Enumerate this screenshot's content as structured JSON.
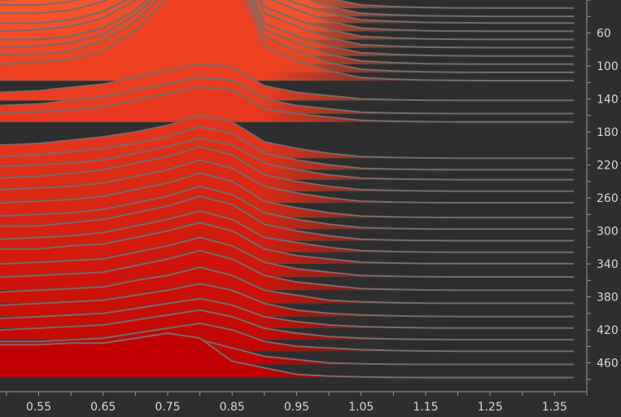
{
  "chart_data": {
    "type": "area",
    "style": "ridgeline",
    "background": "#2e2e2e",
    "line_color": "#6e6e6e",
    "color_top": "#ff5a2e",
    "color_bottom": "#c00000",
    "grid": false,
    "legend": "none",
    "x": [
      0.49,
      0.55,
      0.6,
      0.65,
      0.7,
      0.75,
      0.8,
      0.85,
      0.9,
      0.95,
      1.0,
      1.05,
      1.1,
      1.15,
      1.2,
      1.25,
      1.3,
      1.35,
      1.38
    ],
    "xlim": [
      0.49,
      1.4
    ],
    "x_ticks": [
      0.55,
      0.65,
      0.75,
      0.85,
      0.95,
      1.05,
      1.15,
      1.25,
      1.35
    ],
    "x_tick_labels": [
      "0.55",
      "0.65",
      "0.75",
      "0.85",
      "0.95",
      "1.05",
      "1.15",
      "1.25",
      "1.35"
    ],
    "y_ticks": [
      60,
      100,
      140,
      180,
      220,
      260,
      300,
      340,
      380,
      420,
      460
    ],
    "y_tick_labels": [
      "60",
      "100",
      "140",
      "180",
      "220",
      "260",
      "300",
      "340",
      "380",
      "420",
      "460"
    ],
    "ylim": [
      20,
      495
    ],
    "ridge_scale": 2.0,
    "series": [
      {
        "baseline": 30,
        "values": [
          10,
          11,
          13,
          18,
          26,
          38,
          62,
          58,
          20,
          12,
          6,
          2,
          1,
          0.4,
          0.2,
          0.1,
          0.1,
          0.1,
          0.1
        ]
      },
      {
        "baseline": 40,
        "values": [
          10,
          11,
          13,
          18,
          27,
          40,
          66,
          60,
          21,
          13,
          6,
          2,
          1,
          0.4,
          0.2,
          0.1,
          0.1,
          0.1,
          0.1
        ]
      },
      {
        "baseline": 48,
        "values": [
          11,
          11,
          13,
          18,
          27,
          40,
          68,
          60,
          20,
          12,
          6,
          2,
          1,
          0.4,
          0.2,
          0.1,
          0.1,
          0.1,
          0.1
        ]
      },
      {
        "baseline": 58,
        "values": [
          11,
          11,
          13,
          18,
          28,
          42,
          70,
          62,
          21,
          13,
          6,
          2,
          1,
          0.4,
          0.2,
          0.1,
          0.1,
          0.1,
          0.1
        ]
      },
      {
        "baseline": 68,
        "values": [
          10,
          10,
          12,
          17,
          27,
          42,
          70,
          62,
          20,
          12,
          6,
          2,
          1,
          0.4,
          0.2,
          0.1,
          0.1,
          0.1,
          0.1
        ]
      },
      {
        "baseline": 78,
        "values": [
          10,
          11,
          13,
          18,
          29,
          45,
          75,
          66,
          21,
          13,
          6,
          2,
          1,
          0.4,
          0.2,
          0.1,
          0.1,
          0.1,
          0.1
        ]
      },
      {
        "baseline": 88,
        "values": [
          10,
          10,
          12,
          17,
          28,
          46,
          77,
          66,
          20,
          12,
          6,
          2,
          1,
          0.4,
          0.2,
          0.1,
          0.1,
          0.1,
          0.1
        ]
      },
      {
        "baseline": 98,
        "values": [
          10,
          11,
          13,
          18,
          30,
          48,
          80,
          68,
          21,
          13,
          6,
          2,
          1,
          0.4,
          0.2,
          0.1,
          0.1,
          0.1,
          0.1
        ]
      },
      {
        "baseline": 108,
        "values": [
          11,
          11,
          13,
          19,
          31,
          50,
          82,
          70,
          22,
          13,
          6,
          2,
          1,
          0.4,
          0.2,
          0.1,
          0.1,
          0.1,
          0.1
        ]
      },
      {
        "baseline": 118,
        "values": [
          10,
          11,
          13,
          18,
          30,
          50,
          82,
          70,
          21,
          12,
          6,
          2,
          1,
          0.4,
          0.2,
          0.1,
          0.1,
          0.1,
          0.1
        ]
      },
      {
        "baseline": 142,
        "values": [
          5,
          6,
          8,
          10,
          14,
          18,
          22,
          20,
          9,
          5,
          3,
          1,
          0.5,
          0.2,
          0.1,
          0.1,
          0.1,
          0.1,
          0.1
        ]
      },
      {
        "baseline": 158,
        "values": [
          5,
          6,
          8,
          10,
          14,
          18,
          22,
          20,
          9,
          5,
          3,
          1,
          0.5,
          0.2,
          0.1,
          0.1,
          0.1,
          0.1,
          0.1
        ]
      },
      {
        "baseline": 168,
        "values": [
          5,
          6,
          7,
          9,
          13,
          17,
          21,
          19,
          8,
          5,
          3,
          1,
          0.5,
          0.2,
          0.1,
          0.1,
          0.1,
          0.1,
          0.1
        ]
      },
      {
        "baseline": 212,
        "values": [
          8,
          9,
          11,
          13,
          16,
          20,
          26,
          22,
          10,
          6,
          3,
          1,
          0.5,
          0.2,
          0.1,
          0.1,
          0.1,
          0.1,
          0.1
        ]
      },
      {
        "baseline": 226,
        "values": [
          8,
          9,
          11,
          13,
          16,
          20,
          26,
          22,
          10,
          6,
          3,
          1,
          0.5,
          0.2,
          0.1,
          0.1,
          0.1,
          0.1,
          0.1
        ]
      },
      {
        "baseline": 238,
        "values": [
          8,
          9,
          10,
          12,
          16,
          20,
          25,
          21,
          10,
          6,
          3,
          1,
          0.5,
          0.2,
          0.1,
          0.1,
          0.1,
          0.1,
          0.1
        ]
      },
      {
        "baseline": 252,
        "values": [
          8,
          9,
          11,
          13,
          17,
          21,
          27,
          22,
          10,
          6,
          3,
          1,
          0.5,
          0.2,
          0.1,
          0.1,
          0.1,
          0.1,
          0.1
        ]
      },
      {
        "baseline": 266,
        "values": [
          8,
          9,
          10,
          12,
          16,
          20,
          26,
          21,
          10,
          6,
          3,
          1,
          0.5,
          0.2,
          0.1,
          0.1,
          0.1,
          0.1,
          0.1
        ]
      },
      {
        "baseline": 284,
        "values": [
          9,
          10,
          11,
          13,
          17,
          21,
          27,
          22,
          10,
          6,
          3,
          1,
          0.5,
          0.2,
          0.1,
          0.1,
          0.1,
          0.1,
          0.1
        ]
      },
      {
        "baseline": 298,
        "values": [
          8,
          9,
          10,
          12,
          16,
          20,
          26,
          21,
          10,
          6,
          3,
          1,
          0.5,
          0.2,
          0.1,
          0.1,
          0.1,
          0.1,
          0.1
        ]
      },
      {
        "baseline": 312,
        "values": [
          9,
          9,
          11,
          13,
          17,
          21,
          27,
          22,
          10,
          6,
          3,
          1,
          0.5,
          0.2,
          0.1,
          0.1,
          0.1,
          0.1,
          0.1
        ]
      },
      {
        "baseline": 326,
        "values": [
          8,
          9,
          10,
          12,
          16,
          20,
          25,
          20,
          9,
          6,
          3,
          1,
          0.5,
          0.2,
          0.1,
          0.1,
          0.1,
          0.1,
          0.1
        ]
      },
      {
        "baseline": 340,
        "values": [
          9,
          9,
          11,
          12,
          16,
          20,
          25,
          20,
          9,
          5,
          3,
          1,
          0.5,
          0.2,
          0.1,
          0.1,
          0.1,
          0.1,
          0.1
        ]
      },
      {
        "baseline": 356,
        "values": [
          8,
          9,
          10,
          11,
          15,
          19,
          24,
          19,
          9,
          5,
          3,
          1,
          0.5,
          0.2,
          0.1,
          0.1,
          0.1,
          0.1,
          0.1
        ]
      },
      {
        "baseline": 372,
        "values": [
          8,
          9,
          10,
          11,
          15,
          19,
          24,
          19,
          9,
          5,
          3,
          1,
          0.5,
          0.2,
          0.1,
          0.1,
          0.1,
          0.1,
          0.1
        ]
      },
      {
        "baseline": 388,
        "values": [
          7,
          8,
          9,
          10,
          14,
          17,
          22,
          17,
          8,
          5,
          2,
          1,
          0.5,
          0.2,
          0.1,
          0.1,
          0.1,
          0.1,
          0.1
        ]
      },
      {
        "baseline": 404,
        "values": [
          7,
          8,
          9,
          10,
          13,
          16,
          20,
          16,
          8,
          4,
          2,
          1,
          0.5,
          0.2,
          0.1,
          0.1,
          0.1,
          0.1,
          0.1
        ]
      },
      {
        "baseline": 418,
        "values": [
          6,
          7,
          8,
          9,
          12,
          15,
          18,
          14,
          7,
          4,
          2,
          1,
          0.5,
          0.2,
          0.1,
          0.1,
          0.1,
          0.1,
          0.1
        ]
      },
      {
        "baseline": 432,
        "values": [
          6,
          7,
          8,
          9,
          12,
          15,
          18,
          14,
          7,
          4,
          2,
          1,
          0.5,
          0.2,
          0.1,
          0.1,
          0.1,
          0.1,
          0.1
        ]
      },
      {
        "baseline": 446,
        "values": [
          6,
          6,
          7,
          8,
          11,
          14,
          17,
          13,
          6,
          3,
          2,
          1,
          0.5,
          0.2,
          0.1,
          0.1,
          0.1,
          0.1,
          0.1
        ]
      },
      {
        "baseline": 462,
        "values": [
          5,
          6,
          6,
          7,
          10,
          13,
          15,
          10,
          5,
          3,
          1,
          0.5,
          0.2,
          0.1,
          0.1,
          0.1,
          0.1,
          0.1,
          0.1
        ]
      },
      {
        "baseline": 478,
        "values": [
          20,
          20,
          21,
          21,
          24,
          27,
          24,
          10,
          6,
          2,
          1,
          0.5,
          0.2,
          0.1,
          0.1,
          0.1,
          0.1,
          0.1,
          0.1
        ]
      }
    ]
  }
}
